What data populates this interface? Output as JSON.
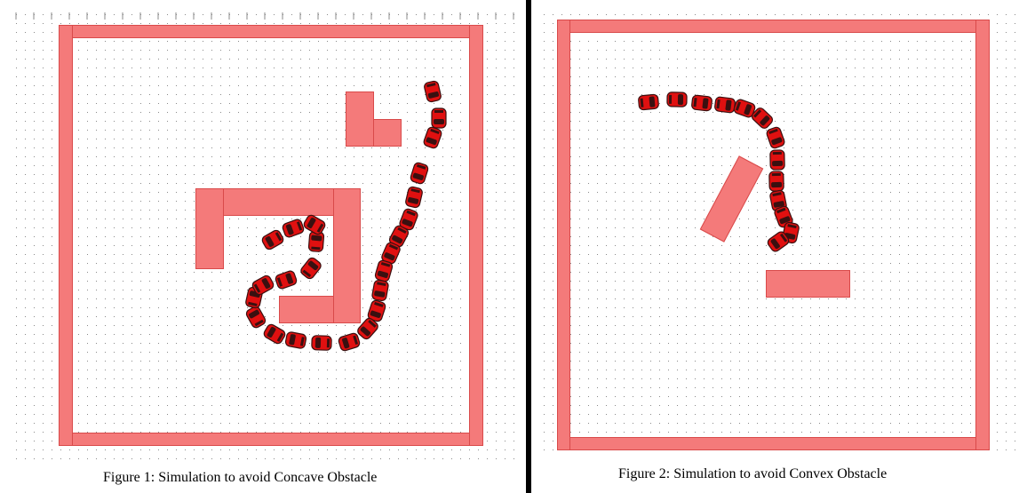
{
  "figure1": {
    "caption": "Figure 1: Simulation to avoid Concave Obstacle",
    "trajectory_icon": "robot-car-icon"
  },
  "figure2": {
    "caption": "Figure 2: Simulation to avoid Convex Obstacle",
    "trajectory_icon": "robot-car-icon"
  },
  "colors": {
    "obstacle": "#f47a7a",
    "robot_body": "#e01010",
    "robot_dark": "#3a1010",
    "grid_dot": "#8a8a8a",
    "divider": "#000000"
  }
}
